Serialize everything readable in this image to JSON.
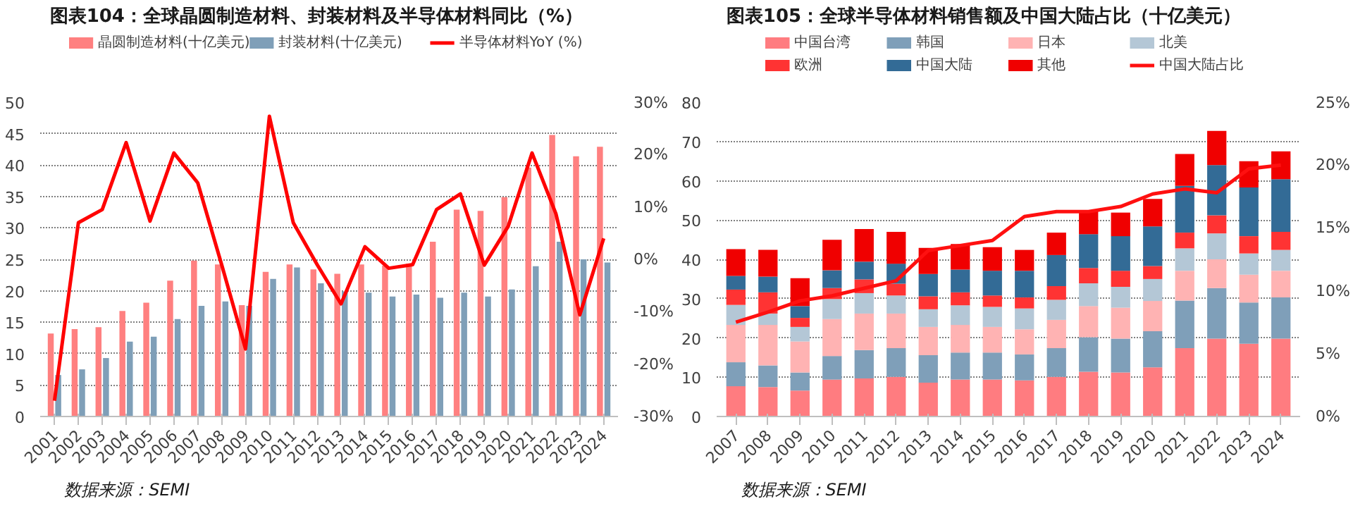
{
  "chart_data": [
    {
      "type": "bar",
      "title": "图表104：全球晶圆制造材料、封装材料及半导体材料同比（%）",
      "categories": [
        "2001",
        "2002",
        "2003",
        "2004",
        "2005",
        "2006",
        "2007",
        "2008",
        "2009",
        "2010",
        "2011",
        "2012",
        "2013",
        "2014",
        "2015",
        "2016",
        "2017",
        "2018",
        "2019",
        "2020",
        "2021",
        "2022",
        "2023",
        "2024"
      ],
      "series": [
        {
          "name": "晶圆制造材料(十亿美元)",
          "color": "#ff8080",
          "values": [
            13.2,
            13.9,
            14.2,
            16.8,
            18.1,
            21.6,
            24.8,
            24.2,
            17.7,
            23.0,
            24.2,
            23.4,
            22.7,
            24.2,
            24.0,
            24.3,
            27.8,
            32.9,
            32.7,
            34.9,
            39.6,
            44.8,
            41.4,
            42.9
          ]
        },
        {
          "name": "封装材料(十亿美元)",
          "color": "#7f9fb8",
          "values": [
            6.6,
            7.5,
            9.3,
            11.9,
            12.7,
            15.5,
            17.6,
            18.3,
            17.6,
            21.9,
            23.7,
            21.2,
            19.9,
            19.7,
            19.1,
            19.4,
            18.9,
            19.7,
            19.1,
            20.2,
            23.9,
            27.8,
            25.0,
            24.5
          ]
        },
        {
          "name": "半导体材料YoY (%)",
          "type": "line",
          "axis": "y2",
          "color": "#ff0000",
          "values": [
            -27,
            7,
            9.5,
            22.3,
            7.3,
            20.3,
            14.6,
            -1,
            -17.1,
            27.3,
            7,
            -1,
            -8.5,
            2.4,
            -1.7,
            -1,
            9.5,
            12.5,
            -1.1,
            6.3,
            20.3,
            8.7,
            -10.6,
            4
          ]
        }
      ],
      "ylim": [
        0,
        50
      ],
      "yticks": [
        0,
        5,
        10,
        15,
        20,
        25,
        30,
        35,
        40,
        45,
        50
      ],
      "y2lim": [
        -30,
        30
      ],
      "y2ticks": [
        {
          "value": -30,
          "label": "-30%"
        },
        {
          "value": -20,
          "label": "-20%"
        },
        {
          "value": -10,
          "label": "-10%"
        },
        {
          "value": 0,
          "label": "0%"
        },
        {
          "value": 10,
          "label": "10%"
        },
        {
          "value": 20,
          "label": "20%"
        },
        {
          "value": 30,
          "label": "30%"
        }
      ],
      "grid": "y",
      "legend": "top",
      "annotations": [
        "数据来源：SEMI"
      ]
    },
    {
      "type": "bar",
      "stacked": true,
      "title": "图表105：全球半导体材料销售额及中国大陆占比（十亿美元）",
      "categories": [
        "2007",
        "2008",
        "2009",
        "2010",
        "2011",
        "2012",
        "2013",
        "2014",
        "2015",
        "2016",
        "2017",
        "2018",
        "2019",
        "2020",
        "2021",
        "2022",
        "2023",
        "2024"
      ],
      "series": [
        {
          "name": "中国台湾",
          "color": "#ff7c80",
          "values": [
            7.7,
            7.5,
            6.6,
            9.4,
            9.7,
            10.1,
            8.6,
            9.4,
            9.4,
            9.2,
            10.1,
            11.4,
            11.2,
            12.5,
            17.4,
            19.8,
            18.5,
            19.8
          ]
        },
        {
          "name": "韩国",
          "color": "#7f9fb9",
          "values": [
            6.1,
            5.5,
            4.6,
            6.0,
            7.2,
            7.3,
            7.0,
            6.9,
            6.9,
            6.6,
            7.3,
            8.8,
            8.6,
            9.2,
            12.1,
            12.9,
            10.5,
            10.5
          ]
        },
        {
          "name": "日本",
          "color": "#ffb3b3",
          "values": [
            9.5,
            10.3,
            7.9,
            9.4,
            9.3,
            8.8,
            7.2,
            7.0,
            6.5,
            6.4,
            7.2,
            7.9,
            7.9,
            7.7,
            7.6,
            7.3,
            7.1,
            6.8
          ]
        },
        {
          "name": "北美",
          "color": "#b4c7d6",
          "values": [
            5.1,
            2.9,
            3.7,
            5.1,
            5.2,
            4.6,
            4.5,
            5.0,
            5.1,
            5.3,
            5.1,
            5.8,
            5.3,
            5.6,
            5.7,
            6.6,
            5.4,
            5.3
          ]
        },
        {
          "name": "欧洲",
          "color": "#ff3333",
          "values": [
            3.9,
            5.4,
            2.3,
            2.8,
            3.5,
            3.0,
            3.3,
            3.3,
            2.9,
            2.8,
            3.5,
            3.9,
            4.1,
            3.3,
            4.0,
            4.6,
            4.4,
            4.6
          ]
        },
        {
          "name": "中国大陆",
          "color": "#336b96",
          "values": [
            3.5,
            4.0,
            3.0,
            4.5,
            4.5,
            5.1,
            5.7,
            5.8,
            6.3,
            6.8,
            7.9,
            8.6,
            8.8,
            10.1,
            11.9,
            12.8,
            12.4,
            13.4
          ]
        },
        {
          "name": "其他",
          "color": "#f00000",
          "values": [
            6.8,
            6.8,
            7.1,
            7.8,
            8.3,
            8.1,
            6.6,
            6.5,
            6.0,
            5.3,
            5.7,
            5.9,
            6.0,
            7.0,
            8.1,
            8.7,
            6.7,
            7.1
          ]
        },
        {
          "name": "中国大陆占比",
          "type": "line",
          "axis": "y2",
          "color": "#ff1010",
          "values": [
            7.5,
            8.3,
            9.2,
            9.6,
            10.2,
            10.8,
            13.2,
            13.6,
            14.0,
            15.9,
            16.3,
            16.3,
            16.7,
            17.7,
            18.1,
            17.8,
            19.7,
            20.0
          ]
        }
      ],
      "ylim": [
        0,
        80
      ],
      "yticks": [
        0,
        10,
        20,
        30,
        40,
        50,
        60,
        70,
        80
      ],
      "y2lim": [
        0,
        25
      ],
      "y2ticks": [
        {
          "value": 0,
          "label": "0%"
        },
        {
          "value": 5,
          "label": "5%"
        },
        {
          "value": 10,
          "label": "10%"
        },
        {
          "value": 15,
          "label": "15%"
        },
        {
          "value": 20,
          "label": "20%"
        },
        {
          "value": 25,
          "label": "25%"
        }
      ],
      "grid": "y",
      "legend": "top",
      "annotations": [
        "数据来源：SEMI"
      ]
    }
  ]
}
